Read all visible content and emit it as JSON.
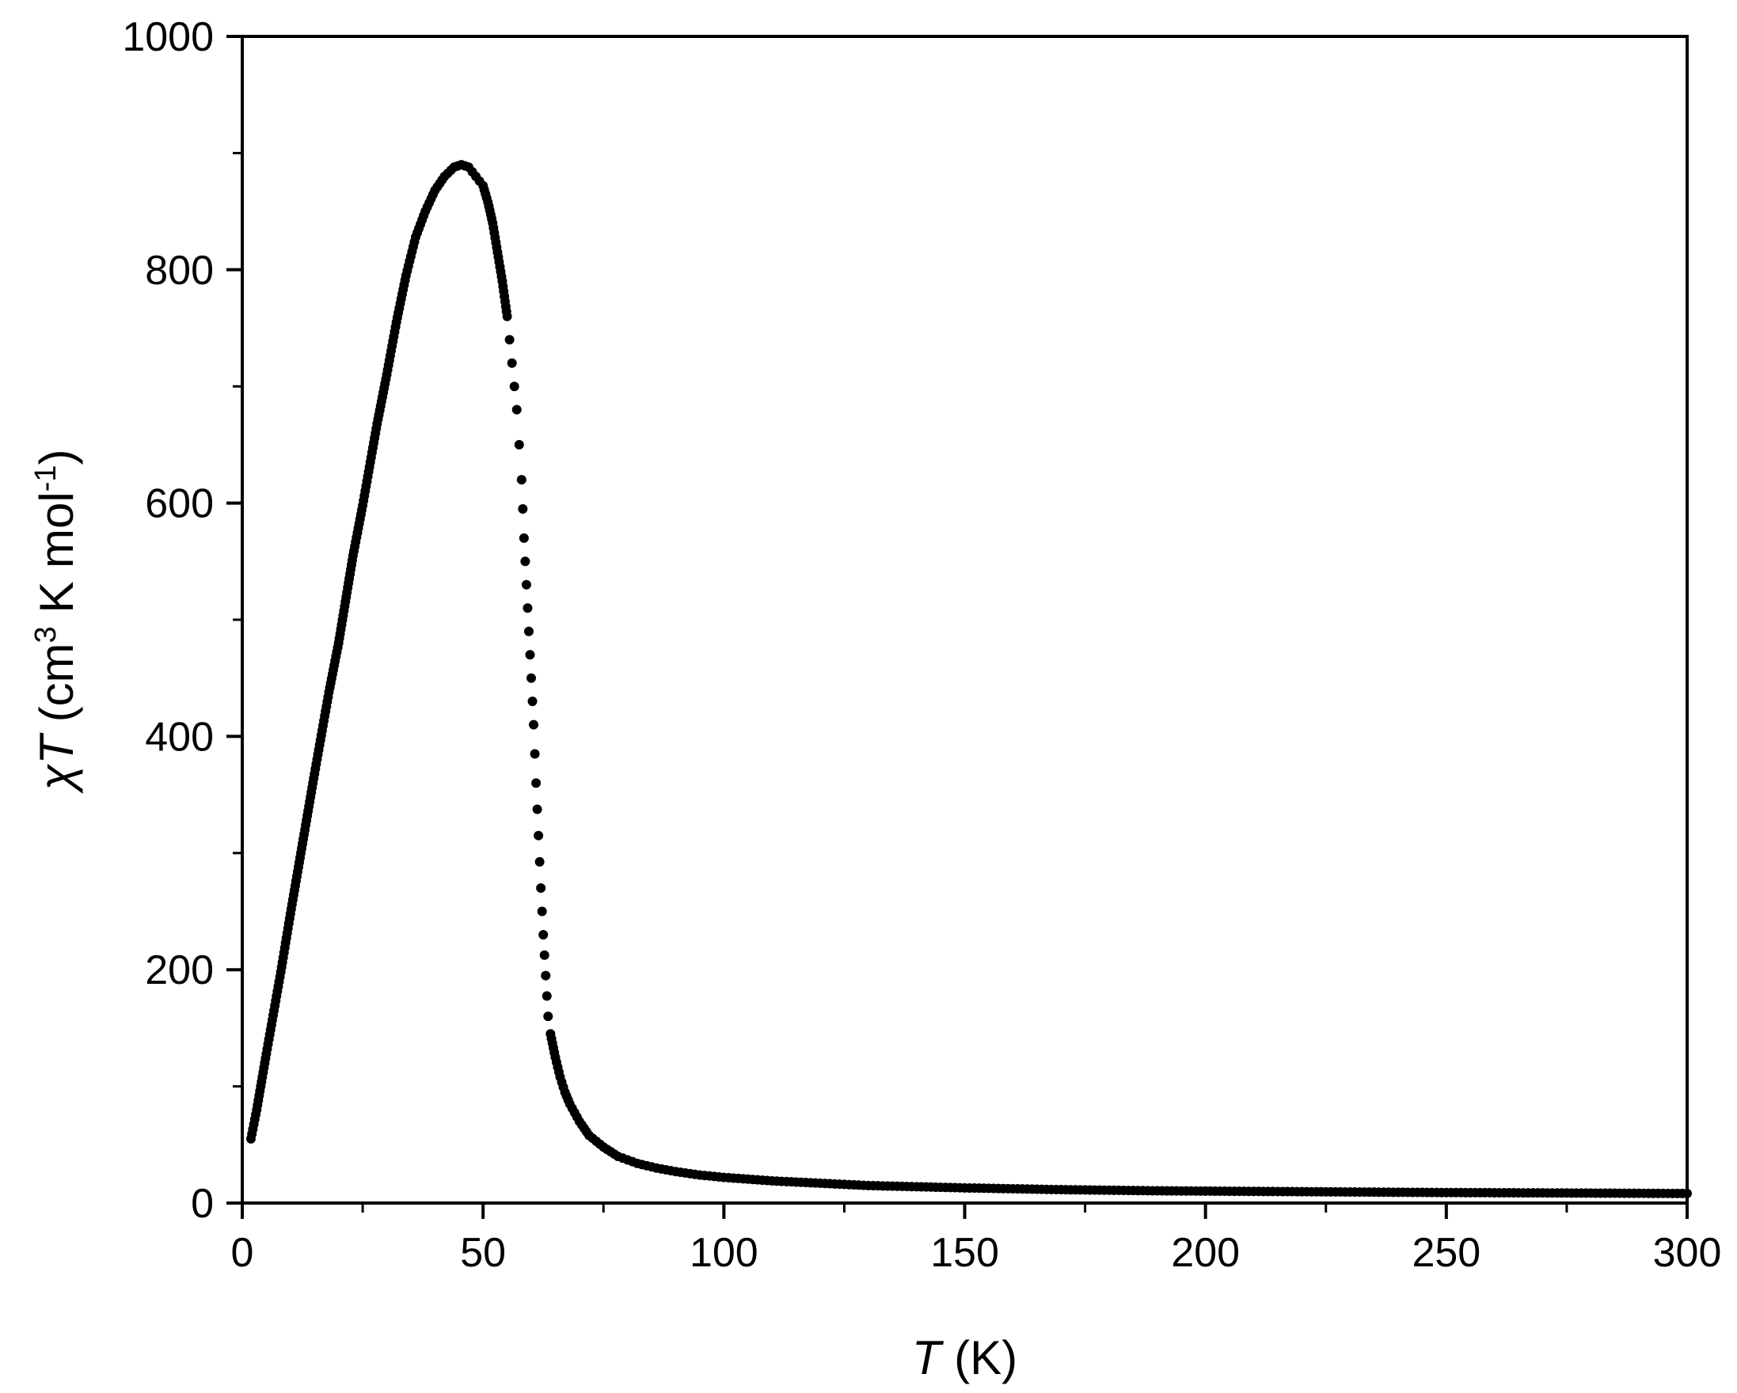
{
  "chart_data": {
    "type": "scatter",
    "title": "",
    "xlabel": {
      "symbol": "T",
      "unit": " (K)"
    },
    "ylabel": {
      "symbol_greek": "χ",
      "symbol": "T",
      "unit_before_sup": " (cm",
      "sup1": "3",
      "unit_middle": " K mol",
      "sup2": "-1",
      "unit_after": ")"
    },
    "xlim": [
      0,
      300
    ],
    "ylim": [
      0,
      1000
    ],
    "x_ticks": [
      "0",
      "50",
      "100",
      "150",
      "200",
      "250",
      "300"
    ],
    "y_ticks": [
      "0",
      "200",
      "400",
      "600",
      "800",
      "1000"
    ],
    "grid": false,
    "legend": "none",
    "marker_color": "#000000",
    "series": [
      {
        "points": [
          [
            1.8,
            55
          ],
          [
            3,
            80
          ],
          [
            5,
            128
          ],
          [
            8,
            198
          ],
          [
            10,
            248
          ],
          [
            13,
            320
          ],
          [
            15,
            368
          ],
          [
            18,
            438
          ],
          [
            20,
            480
          ],
          [
            23,
            555
          ],
          [
            25,
            598
          ],
          [
            28,
            668
          ],
          [
            30,
            710
          ],
          [
            32,
            755
          ],
          [
            34,
            795
          ],
          [
            36,
            828
          ],
          [
            38,
            850
          ],
          [
            40,
            868
          ],
          [
            42,
            880
          ],
          [
            44,
            888
          ],
          [
            45.5,
            890
          ],
          [
            47,
            888
          ],
          [
            48.5,
            880
          ],
          [
            50,
            872
          ],
          [
            51,
            858
          ],
          [
            52,
            840
          ],
          [
            53,
            815
          ],
          [
            54,
            790
          ],
          [
            55,
            760
          ],
          [
            56,
            720
          ],
          [
            57,
            680
          ],
          [
            57.5,
            650
          ],
          [
            58,
            620
          ],
          [
            58.5,
            570
          ],
          [
            59,
            530
          ],
          [
            59.5,
            490
          ],
          [
            60,
            450
          ],
          [
            60.5,
            410
          ],
          [
            61,
            360
          ],
          [
            61.5,
            315
          ],
          [
            62,
            270
          ],
          [
            62.5,
            230
          ],
          [
            63,
            195
          ],
          [
            63.5,
            160
          ],
          [
            64,
            145
          ],
          [
            65,
            125
          ],
          [
            66,
            108
          ],
          [
            67,
            95
          ],
          [
            68,
            85
          ],
          [
            70,
            70
          ],
          [
            72,
            58
          ],
          [
            75,
            48
          ],
          [
            78,
            40
          ],
          [
            82,
            34
          ],
          [
            86,
            30
          ],
          [
            90,
            27
          ],
          [
            95,
            24
          ],
          [
            100,
            22
          ],
          [
            110,
            19
          ],
          [
            120,
            17
          ],
          [
            130,
            15
          ],
          [
            140,
            14
          ],
          [
            150,
            13
          ],
          [
            170,
            11.5
          ],
          [
            190,
            10.5
          ],
          [
            210,
            10
          ],
          [
            230,
            9.5
          ],
          [
            250,
            9
          ],
          [
            270,
            8.7
          ],
          [
            300,
            8.2
          ]
        ]
      }
    ]
  }
}
